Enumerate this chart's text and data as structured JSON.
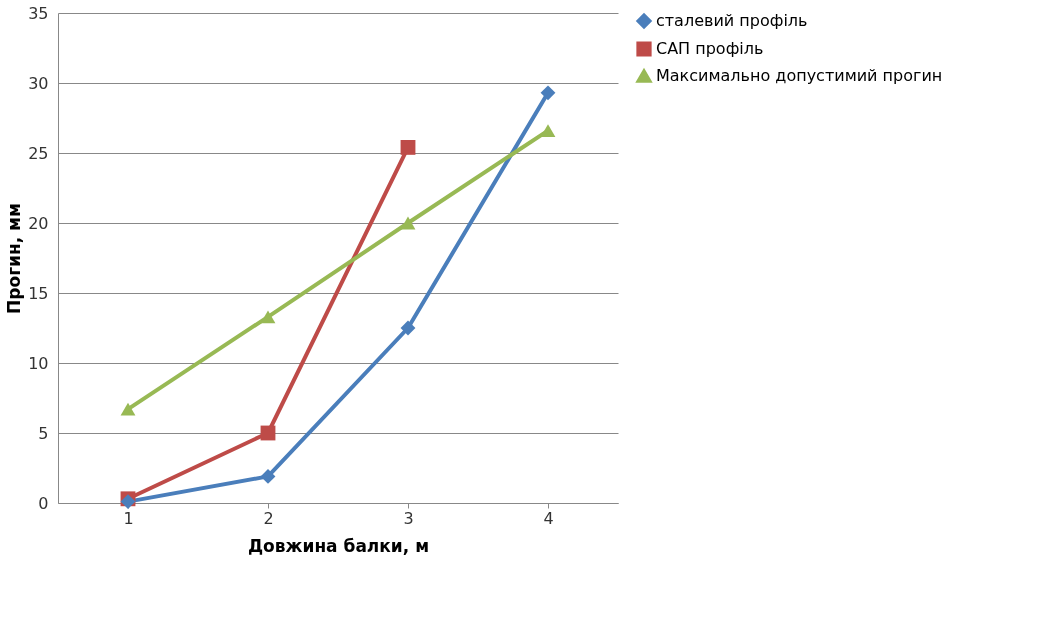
{
  "chart_data": {
    "type": "line",
    "xlabel": "Довжина балки, м",
    "ylabel": "Прогин, мм",
    "categories": [
      "1",
      "2",
      "3",
      "4"
    ],
    "series": [
      {
        "name": "сталевий профіль",
        "color": "#4a7ebb",
        "marker": "diamond",
        "values": [
          0.1,
          1.9,
          12.5,
          29.3
        ]
      },
      {
        "name": "САП профіль",
        "color": "#be4b48",
        "marker": "square",
        "values": [
          0.3,
          5.0,
          25.4,
          null
        ]
      },
      {
        "name": "Максимально допустимий прогин",
        "color": "#98b954",
        "marker": "triangle",
        "values": [
          6.7,
          13.3,
          20.0,
          26.6
        ]
      }
    ],
    "ylim": [
      0,
      35
    ],
    "yticks": [
      0,
      5,
      10,
      15,
      20,
      25,
      30,
      35
    ],
    "grid": "y",
    "legend": "right"
  }
}
